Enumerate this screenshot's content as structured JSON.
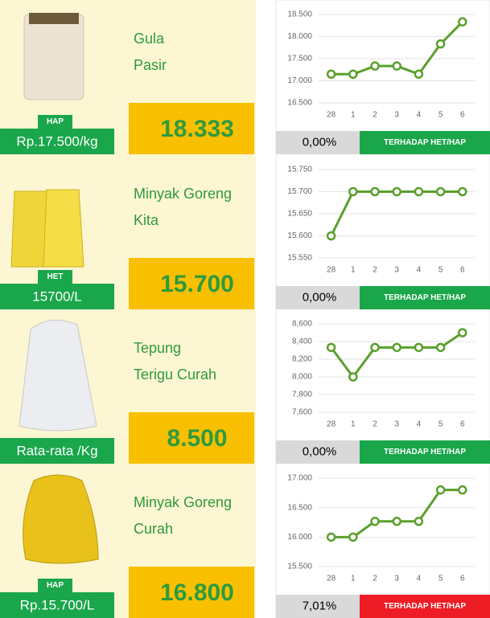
{
  "items": [
    {
      "name_lines": [
        "Gula",
        "Pasir"
      ],
      "tag": "HAP",
      "ref": "Rp.17.500/kg",
      "price": "18.333",
      "pct": "0,00%",
      "status": "TERHADAP HET/HAP",
      "status_color": "#1aa64b"
    },
    {
      "name_lines": [
        "Minyak Goreng",
        "Kita"
      ],
      "tag": "HET",
      "ref": "15700/L",
      "price": "15.700",
      "pct": "0,00%",
      "status": "TERHADAP HET/HAP",
      "status_color": "#1aa64b"
    },
    {
      "name_lines": [
        "Tepung",
        "Terigu Curah"
      ],
      "ref": "Rata-rata /Kg",
      "price": "8.500",
      "pct": "0,00%",
      "status": "TERHADAP HET/HAP",
      "status_color": "#1aa64b"
    },
    {
      "name_lines": [
        "Minyak Goreng",
        "Curah"
      ],
      "tag": "HAP",
      "ref": "Rp.15.700/L",
      "price": "16.800",
      "pct": "7,01%",
      "status": "TERHADAP HET/HAP",
      "status_color": "#ee1c24"
    }
  ],
  "chart_data": [
    {
      "type": "line",
      "categories": [
        "28",
        "1",
        "2",
        "3",
        "4",
        "5",
        "6"
      ],
      "color": "#5aa02c",
      "grid": true,
      "values": [
        17150,
        17150,
        17333,
        17333,
        17150,
        17833,
        18333
      ],
      "ylim": [
        16500,
        18500
      ],
      "yticks": [
        {
          "value": 16500,
          "label": "16.500"
        },
        {
          "value": 17000,
          "label": "17.000"
        },
        {
          "value": 17500,
          "label": "17.500"
        },
        {
          "value": 18000,
          "label": "18.000"
        },
        {
          "value": 18500,
          "label": "18.500"
        }
      ]
    },
    {
      "type": "line",
      "categories": [
        "28",
        "1",
        "2",
        "3",
        "4",
        "5",
        "6"
      ],
      "color": "#5aa02c",
      "grid": true,
      "values": [
        15600,
        15700,
        15700,
        15700,
        15700,
        15700,
        15700
      ],
      "ylim": [
        15550,
        15750
      ],
      "yticks": [
        {
          "value": 15550,
          "label": "15.550"
        },
        {
          "value": 15600,
          "label": "15.600"
        },
        {
          "value": 15650,
          "label": "15.650"
        },
        {
          "value": 15700,
          "label": "15.700"
        },
        {
          "value": 15750,
          "label": "15.750"
        }
      ]
    },
    {
      "type": "line",
      "categories": [
        "28",
        "1",
        "2",
        "3",
        "4",
        "5",
        "6"
      ],
      "color": "#5aa02c",
      "grid": true,
      "values": [
        8333,
        8000,
        8333,
        8333,
        8333,
        8333,
        8500
      ],
      "ylim": [
        7600,
        8600
      ],
      "yticks": [
        {
          "value": 7600,
          "label": "7,600"
        },
        {
          "value": 7800,
          "label": "7,800"
        },
        {
          "value": 8000,
          "label": "8,000"
        },
        {
          "value": 8200,
          "label": "8,200"
        },
        {
          "value": 8400,
          "label": "8,400"
        },
        {
          "value": 8600,
          "label": "8,600"
        }
      ]
    },
    {
      "type": "line",
      "categories": [
        "28",
        "1",
        "2",
        "3",
        "4",
        "5",
        "6"
      ],
      "color": "#5aa02c",
      "grid": true,
      "values": [
        16000,
        16000,
        16267,
        16267,
        16267,
        16800,
        16800
      ],
      "ylim": [
        15500,
        17000
      ],
      "yticks": [
        {
          "value": 15500,
          "label": "15.500"
        },
        {
          "value": 16000,
          "label": "16.000"
        },
        {
          "value": 16500,
          "label": "16.500"
        },
        {
          "value": 17000,
          "label": "17.000"
        }
      ]
    }
  ]
}
